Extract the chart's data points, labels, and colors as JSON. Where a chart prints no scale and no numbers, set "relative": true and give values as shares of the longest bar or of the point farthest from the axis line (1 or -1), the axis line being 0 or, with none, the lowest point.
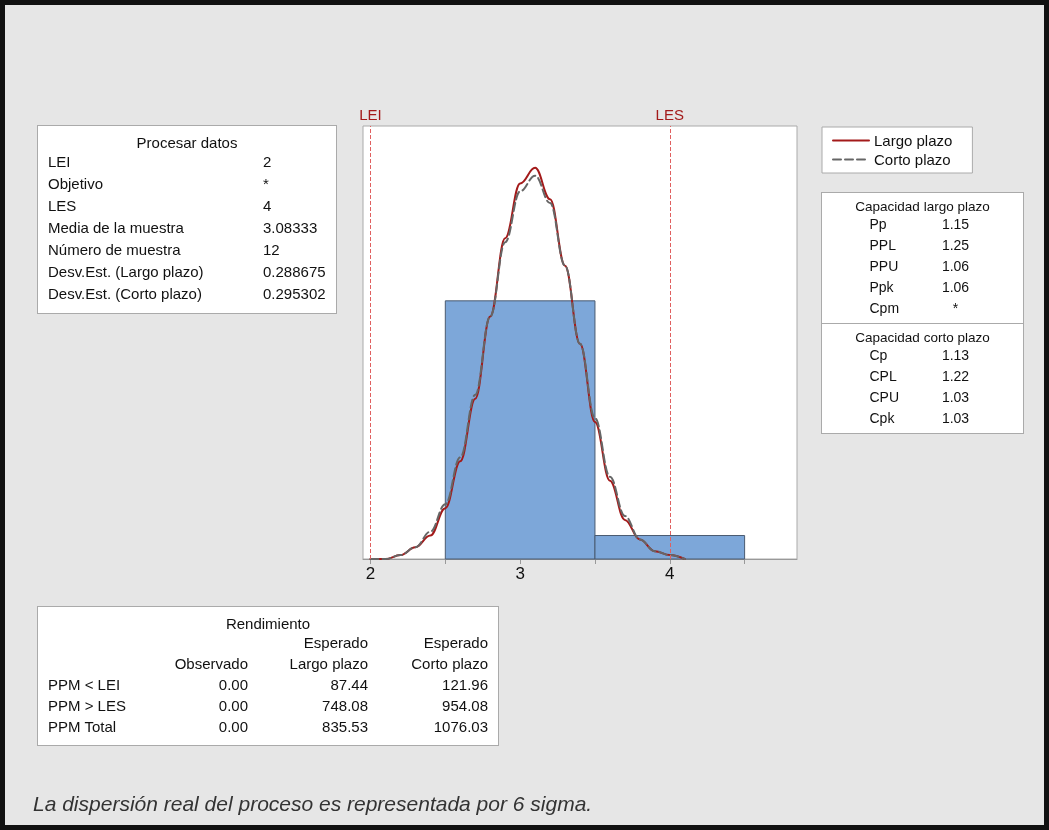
{
  "chart_data": {
    "type": "histogram",
    "relative": true,
    "xlim": [
      1.95,
      4.85
    ],
    "xticks": [
      2,
      {
        "value": 2.5,
        "label": null
      },
      3,
      {
        "value": 3.5,
        "label": null
      },
      4,
      {
        "value": 4.5,
        "label": null
      }
    ],
    "series": [
      {
        "type": "histogram",
        "color": "#7da7d9",
        "bins": [
          2.5,
          3.5,
          4.5
        ],
        "values": [
          0.66,
          0.06
        ]
      },
      {
        "type": "line",
        "name": "Largo plazo",
        "color": "#a31a1a",
        "line_style": "solid",
        "x": [
          2.0,
          2.1,
          2.2,
          2.3,
          2.4,
          2.5,
          2.6,
          2.7,
          2.8,
          2.9,
          3.0,
          3.1,
          3.2,
          3.3,
          3.4,
          3.5,
          3.6,
          3.7,
          3.8,
          3.9,
          4.0,
          4.1
        ],
        "values": [
          0,
          0,
          0.01,
          0.03,
          0.06,
          0.13,
          0.25,
          0.41,
          0.62,
          0.82,
          0.96,
          1,
          0.92,
          0.75,
          0.55,
          0.35,
          0.2,
          0.1,
          0.05,
          0.02,
          0.01,
          0
        ]
      },
      {
        "type": "line",
        "name": "Corto plazo",
        "color": "#666666",
        "line_style": "dashed",
        "x": [
          2.0,
          2.1,
          2.2,
          2.3,
          2.4,
          2.5,
          2.6,
          2.7,
          2.8,
          2.9,
          3.0,
          3.1,
          3.2,
          3.3,
          3.4,
          3.5,
          3.6,
          3.7,
          3.8,
          3.9,
          4.0,
          4.1
        ],
        "values": [
          0,
          0,
          0.01,
          0.03,
          0.07,
          0.14,
          0.26,
          0.42,
          0.62,
          0.81,
          0.94,
          0.98,
          0.91,
          0.75,
          0.55,
          0.36,
          0.21,
          0.11,
          0.05,
          0.02,
          0.01,
          0
        ]
      }
    ],
    "ref_lines": [
      {
        "axis": "x",
        "value": 2,
        "label": "LEI",
        "color": "#e06060",
        "line_style": "dashed"
      },
      {
        "axis": "x",
        "value": 4,
        "label": "LES",
        "color": "#e06060",
        "line_style": "dashed"
      }
    ],
    "legend": "top right",
    "annotations": [
      "Procesar datos",
      "LEI",
      "2",
      "Objetivo",
      "*",
      "LES",
      "4",
      "Media de la muestra",
      "3.08333",
      "Número de muestra",
      "12",
      "Desv.Est. (Largo plazo)",
      "0.288675",
      "Desv.Est. (Corto plazo)",
      "0.295302",
      "Capacidad largo plazo",
      "Pp",
      "1.15",
      "PPL",
      "1.25",
      "PPU",
      "1.06",
      "Ppk",
      "1.06",
      "Cpm",
      "*",
      "Capacidad corto plazo",
      "Cp",
      "1.13",
      "CPL",
      "1.22",
      "CPU",
      "1.03",
      "Cpk",
      "1.03",
      "Rendimiento",
      "Esperado",
      "Esperado",
      "Observado",
      "Largo plazo",
      "Corto plazo",
      "PPM < LEI",
      "0.00",
      "87.44",
      "121.96",
      "PPM > LES",
      "0.00",
      "748.08",
      "954.08",
      "PPM Total",
      "0.00",
      "835.53",
      "1076.03",
      "La dispersión real del proceso es representada por 6 sigma."
    ]
  }
}
